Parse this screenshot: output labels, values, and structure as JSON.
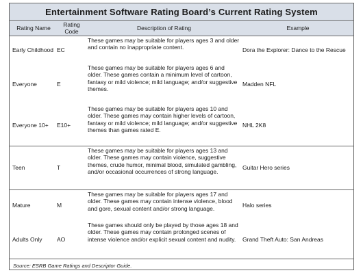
{
  "title": "Entertainment Software Rating Board’s Current Rating System",
  "headers": {
    "rating_name": "Rating Name",
    "rating_code": "Rating Code",
    "description": "Description of Rating",
    "example": "Example"
  },
  "rows": [
    {
      "name": "Early Childhood",
      "code": "EC",
      "description": "These games may be suitable for players ages 3 and older and contain no inappropriate content.",
      "example": "Dora the Explorer: Dance to the Rescue"
    },
    {
      "name": "Everyone",
      "code": "E",
      "description": "These games may be suitable for players ages 6 and older. These games contain a minimum level of cartoon, fantasy or mild violence; mild language; and/or suggestive themes.",
      "example": "Madden NFL"
    },
    {
      "name": "Everyone 10+",
      "code": "E10+",
      "description": "These games may be suitable for players ages 10 and older. These games may contain higher levels of cartoon, fantasy or mild violence; mild language; and/or suggestive themes than games rated E.",
      "example": "NHL 2K8"
    },
    {
      "name": "Teen",
      "code": "T",
      "description": "These games may be suitable for players ages 13 and older. These games may contain violence, suggestive themes, crude humor, minimal blood, simulated gambling, and/or occasional occurrences of strong language.",
      "example": "Guitar Hero series"
    },
    {
      "name": "Mature",
      "code": "M",
      "description": "These games may be suitable for players ages 17 and older. These games may contain intense violence, blood and gore, sexual content and/or strong language.",
      "example": "Halo series"
    },
    {
      "name": "Adults Only",
      "code": "AO",
      "description": "These games should only be played by those ages 18 and older. These games may contain prolonged scenes of intense violence and/or explicit sexual content and nudity.",
      "example": "Grand Theft Auto: San Andreas"
    }
  ],
  "source": "Source: ESRB Game Ratings and Descriptor Guide."
}
